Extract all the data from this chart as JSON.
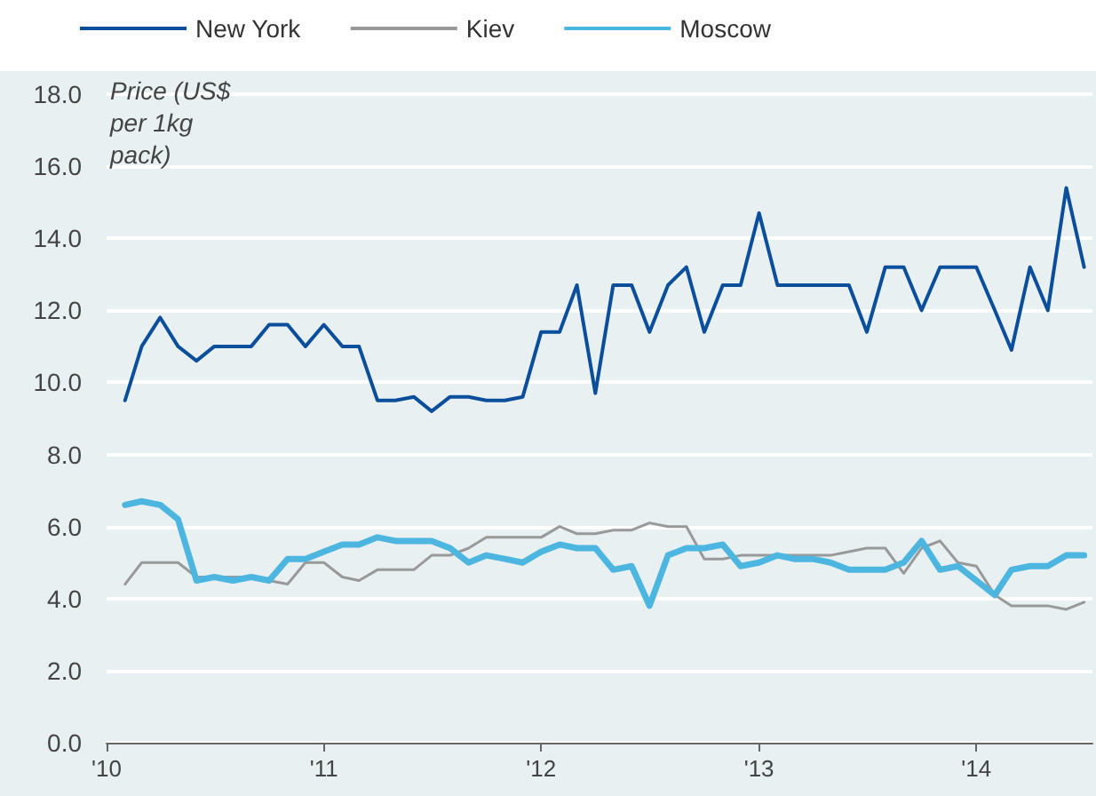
{
  "chart_data": {
    "type": "line",
    "ylabel": "Price (US$ per 1kg pack)",
    "x": [
      "2010-02",
      "2010-03",
      "2010-04",
      "2010-05",
      "2010-06",
      "2010-07",
      "2010-08",
      "2010-09",
      "2010-10",
      "2010-11",
      "2010-12",
      "2011-01",
      "2011-02",
      "2011-03",
      "2011-04",
      "2011-05",
      "2011-06",
      "2011-07",
      "2011-08",
      "2011-09",
      "2011-10",
      "2011-11",
      "2011-12",
      "2012-01",
      "2012-02",
      "2012-03",
      "2012-04",
      "2012-05",
      "2012-06",
      "2012-07",
      "2012-08",
      "2012-09",
      "2012-10",
      "2012-11",
      "2012-12",
      "2013-01",
      "2013-02",
      "2013-03",
      "2013-04",
      "2013-05",
      "2013-06",
      "2013-07",
      "2013-08",
      "2013-09",
      "2013-10",
      "2013-11",
      "2013-12",
      "2014-01",
      "2014-02",
      "2014-03",
      "2014-04",
      "2014-05",
      "2014-06",
      "2014-07"
    ],
    "series": [
      {
        "name": "New York",
        "color": "#0b4f9c",
        "values": [
          9.5,
          11.0,
          11.8,
          11.0,
          10.6,
          11.0,
          11.0,
          11.0,
          11.6,
          11.6,
          11.0,
          11.6,
          11.0,
          11.0,
          9.5,
          9.5,
          9.6,
          9.2,
          9.6,
          9.6,
          9.5,
          9.5,
          9.6,
          11.4,
          11.4,
          12.7,
          9.7,
          12.7,
          12.7,
          11.4,
          12.7,
          13.2,
          11.4,
          12.7,
          12.7,
          14.7,
          12.7,
          12.7,
          12.7,
          12.7,
          12.7,
          11.4,
          13.2,
          13.2,
          12.0,
          13.2,
          13.2,
          13.2,
          12.0,
          10.9,
          13.2,
          12.0,
          15.4,
          13.2
        ]
      },
      {
        "name": "Kiev",
        "color": "#999999",
        "values": [
          4.4,
          5.0,
          5.0,
          5.0,
          4.6,
          4.6,
          4.6,
          4.6,
          4.5,
          4.4,
          5.0,
          5.0,
          4.6,
          4.5,
          4.8,
          4.8,
          4.8,
          5.2,
          5.2,
          5.4,
          5.7,
          5.7,
          5.7,
          5.7,
          6.0,
          5.8,
          5.8,
          5.9,
          5.9,
          6.1,
          6.0,
          6.0,
          5.1,
          5.1,
          5.2,
          5.2,
          5.2,
          5.2,
          5.2,
          5.2,
          5.3,
          5.4,
          5.4,
          4.7,
          5.4,
          5.6,
          5.0,
          4.9,
          4.1,
          3.8,
          3.8,
          3.8,
          3.7,
          3.9
        ]
      },
      {
        "name": "Moscow",
        "color": "#4db6e0",
        "values": [
          6.6,
          6.7,
          6.6,
          6.2,
          4.5,
          4.6,
          4.5,
          4.6,
          4.5,
          5.1,
          5.1,
          5.3,
          5.5,
          5.5,
          5.7,
          5.6,
          5.6,
          5.6,
          5.4,
          5.0,
          5.2,
          5.1,
          5.0,
          5.3,
          5.5,
          5.4,
          5.4,
          4.8,
          4.9,
          3.8,
          5.2,
          5.4,
          5.4,
          5.5,
          4.9,
          5.0,
          5.2,
          5.1,
          5.1,
          5.0,
          4.8,
          4.8,
          4.8,
          5.0,
          5.6,
          4.8,
          4.9,
          4.5,
          4.1,
          4.8,
          4.9,
          4.9,
          5.2,
          5.2
        ]
      }
    ],
    "xlim": [
      "2010-01",
      "2014-07-15"
    ],
    "xticks": [
      {
        "value": "2010-01",
        "label": "'10"
      },
      {
        "value": "2011-01",
        "label": "'11"
      },
      {
        "value": "2012-01",
        "label": "'12"
      },
      {
        "value": "2013-01",
        "label": "'13"
      },
      {
        "value": "2014-01",
        "label": "'14"
      }
    ],
    "ylim": [
      0,
      18
    ],
    "yticks": [
      {
        "value": 0,
        "label": "0.0"
      },
      {
        "value": 2,
        "label": "2.0"
      },
      {
        "value": 4,
        "label": "4.0"
      },
      {
        "value": 6,
        "label": "6.0"
      },
      {
        "value": 8,
        "label": "8.0"
      },
      {
        "value": 10,
        "label": "10.0"
      },
      {
        "value": 12,
        "label": "12.0"
      },
      {
        "value": 14,
        "label": "14.0"
      },
      {
        "value": 16,
        "label": "16.0"
      },
      {
        "value": 18,
        "label": "18.0"
      }
    ],
    "grid": "y",
    "legend": "top",
    "marker": "none",
    "line_style": "solid"
  }
}
